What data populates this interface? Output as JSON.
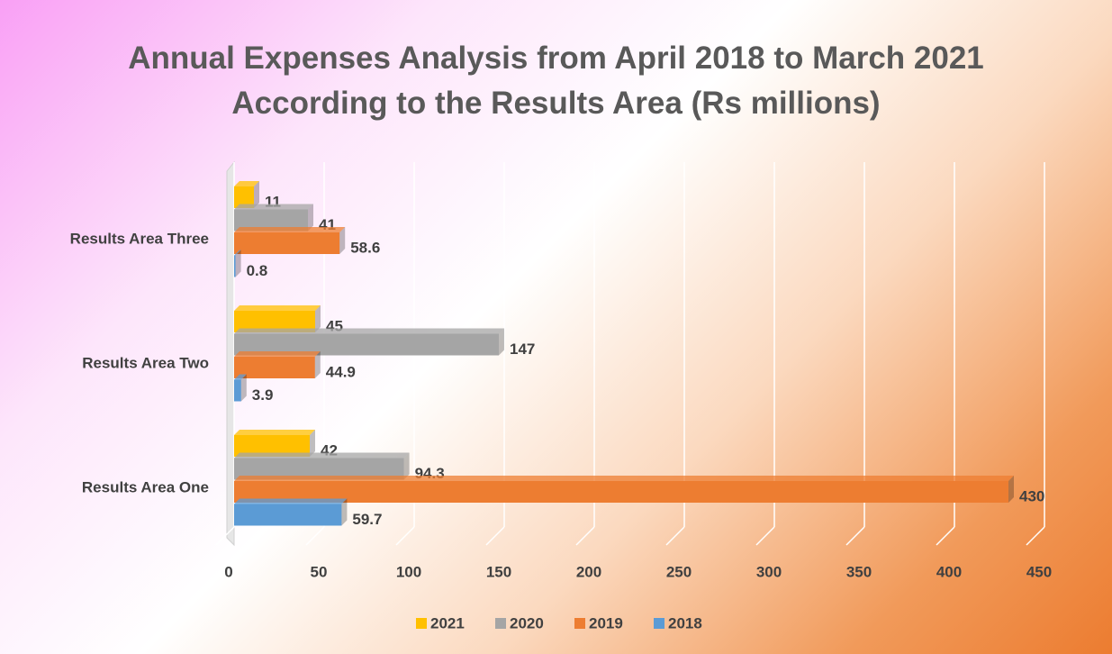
{
  "chart_data": {
    "type": "bar",
    "orientation": "horizontal",
    "title": "Annual Expenses Analysis from April 2018 to March 2021 According to the Results Area (Rs millions)",
    "categories": [
      "Results Area One",
      "Results Area Two",
      "Results Area Three"
    ],
    "series": [
      {
        "name": "2021",
        "color": "#FFC000",
        "values": [
          42,
          45,
          11
        ]
      },
      {
        "name": "2020",
        "color": "#A5A5A5",
        "values": [
          94.3,
          147,
          41
        ]
      },
      {
        "name": "2019",
        "color": "#ED7D31",
        "values": [
          430,
          44.9,
          58.6
        ]
      },
      {
        "name": "2018",
        "color": "#5B9BD5",
        "values": [
          59.7,
          3.9,
          0.8
        ]
      }
    ],
    "xlim": [
      0,
      450
    ],
    "xticks": [
      0,
      50,
      100,
      150,
      200,
      250,
      300,
      350,
      400,
      450
    ],
    "grid": true,
    "legend": "bottom"
  }
}
